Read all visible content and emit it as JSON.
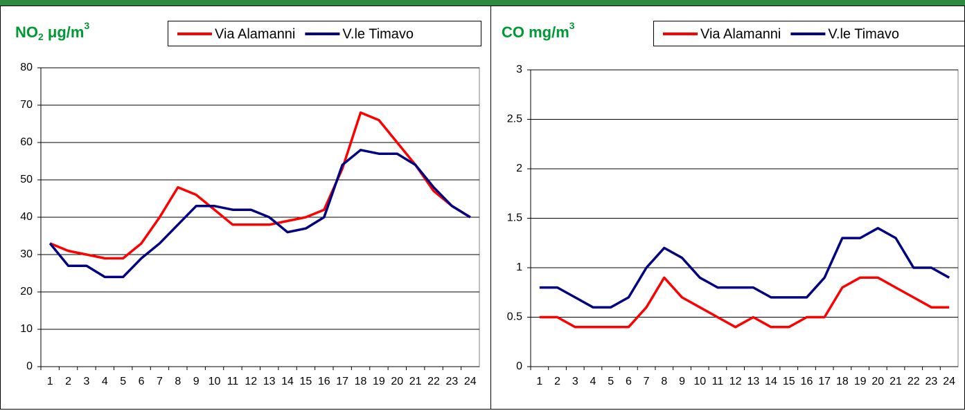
{
  "chart_data": [
    {
      "type": "line",
      "title": [
        "NO",
        "2",
        " μg/m",
        "3"
      ],
      "categories": [
        1,
        2,
        3,
        4,
        5,
        6,
        7,
        8,
        9,
        10,
        11,
        12,
        13,
        14,
        15,
        16,
        17,
        18,
        19,
        20,
        21,
        22,
        23,
        24
      ],
      "series": [
        {
          "name": "Via Alamanni",
          "color": "#ff0000",
          "values": [
            33,
            31,
            30,
            29,
            29,
            33,
            40,
            48,
            46,
            42,
            38,
            38,
            38,
            39,
            40,
            42,
            53,
            68,
            66,
            60,
            54,
            47,
            43,
            40
          ]
        },
        {
          "name": "V.le Timavo",
          "color": "#000080",
          "values": [
            33,
            27,
            27,
            24,
            24,
            29,
            33,
            38,
            43,
            43,
            42,
            42,
            40,
            36,
            37,
            40,
            54,
            58,
            57,
            57,
            54,
            48,
            43,
            40
          ]
        }
      ],
      "ylim": [
        0,
        80
      ],
      "yticks": [
        0,
        10,
        20,
        30,
        40,
        50,
        60,
        70,
        80
      ],
      "grid": true
    },
    {
      "type": "line",
      "title": [
        "CO mg/m",
        "3"
      ],
      "categories": [
        1,
        2,
        3,
        4,
        5,
        6,
        7,
        8,
        9,
        10,
        11,
        12,
        13,
        14,
        15,
        16,
        17,
        18,
        19,
        20,
        21,
        22,
        23,
        24
      ],
      "series": [
        {
          "name": "Via Alamanni",
          "color": "#ff0000",
          "values": [
            0.5,
            0.5,
            0.4,
            0.4,
            0.4,
            0.4,
            0.6,
            0.9,
            0.7,
            0.6,
            0.5,
            0.4,
            0.5,
            0.4,
            0.4,
            0.5,
            0.5,
            0.8,
            0.9,
            0.9,
            0.8,
            0.7,
            0.6,
            0.6
          ]
        },
        {
          "name": "V.le Timavo",
          "color": "#000080",
          "values": [
            0.8,
            0.8,
            0.7,
            0.6,
            0.6,
            0.7,
            1,
            1.2,
            1.1,
            0.9,
            0.8,
            0.8,
            0.8,
            0.7,
            0.7,
            0.7,
            0.9,
            1.3,
            1.3,
            1.4,
            1.3,
            1,
            1,
            0.9
          ]
        }
      ],
      "ylim": [
        0,
        3
      ],
      "yticks": [
        0,
        0.5,
        1,
        1.5,
        2,
        2.5,
        3
      ],
      "grid": true
    }
  ]
}
